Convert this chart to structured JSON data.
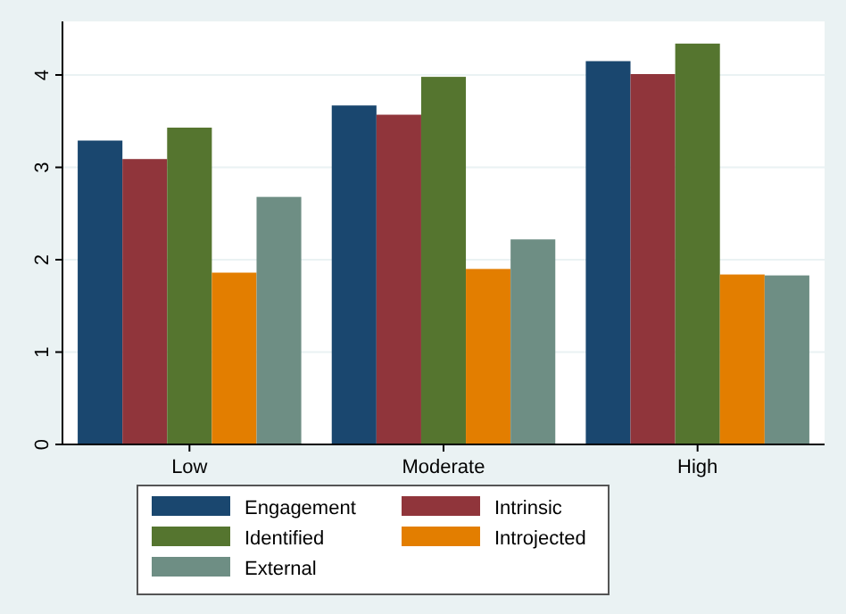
{
  "chart_data": {
    "type": "bar",
    "categories": [
      "Low",
      "Moderate",
      "High"
    ],
    "series": [
      {
        "name": "Engagement",
        "color": "#1a476f",
        "values": [
          3.29,
          3.67,
          4.15
        ]
      },
      {
        "name": "Intrinsic",
        "color": "#90353b",
        "values": [
          3.09,
          3.57,
          4.01
        ]
      },
      {
        "name": "Identified",
        "color": "#55752f",
        "values": [
          3.43,
          3.98,
          4.34
        ]
      },
      {
        "name": "Introjected",
        "color": "#e37e00",
        "values": [
          1.86,
          1.9,
          1.84
        ]
      },
      {
        "name": "External",
        "color": "#6e8e84",
        "values": [
          2.68,
          2.22,
          1.83
        ]
      }
    ],
    "ylim": [
      0,
      4.58
    ],
    "yticks": [
      0,
      1,
      2,
      3,
      4
    ],
    "grid": "y",
    "legend": "bottom"
  }
}
